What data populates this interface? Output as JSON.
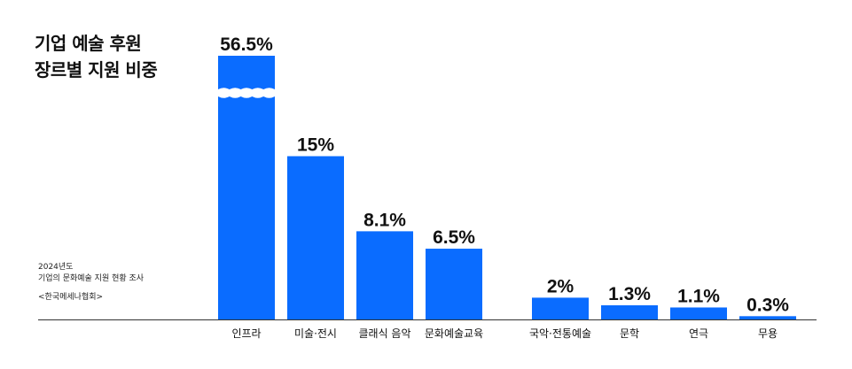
{
  "header": {
    "title_line1": "기업 예술 후원",
    "title_line2": "장르별 지원 비중"
  },
  "note": {
    "year": "2024년도",
    "survey": "기업의 문화예술 지원 현황 조사",
    "source": "<한국메세나협회>"
  },
  "chart_data": {
    "type": "bar",
    "title": "기업 예술 후원 장르별 지원 비중",
    "xlabel": "",
    "ylabel": "",
    "categories": [
      "인프라",
      "미술·전시",
      "클래식 음악",
      "문화예술교육",
      "국악·전통예술",
      "문학",
      "연극",
      "무용"
    ],
    "values": [
      56.5,
      15,
      8.1,
      6.5,
      2,
      1.3,
      1.1,
      0.3
    ],
    "value_labels": [
      "56.5%",
      "15%",
      "8.1%",
      "6.5%",
      "2%",
      "1.3%",
      "1.1%",
      "0.3%"
    ],
    "broken_axis": true,
    "grid": false,
    "legend": "none",
    "colors": {
      "bar": "#0a6cff",
      "baseline": "#333333",
      "text": "#111111"
    }
  }
}
